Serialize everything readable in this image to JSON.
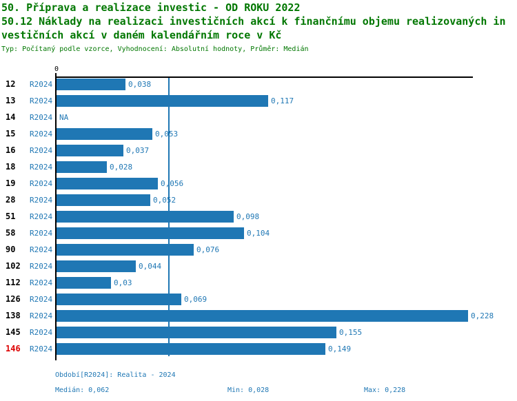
{
  "title": {
    "line1": "50. Příprava a realizace investic - OD ROKU 2022",
    "line2": "50.12 Náklady na realizaci investičních akcí k finančnímu objemu realizovaných in",
    "line3": "vestičních akcí v daném kalendářním roce v Kč",
    "meta": "Typ: Počítaný podle vzorce, Vyhodnocení: Absolutní hodnoty, Průměr: Medián"
  },
  "colors": {
    "title_green": "#007700",
    "bar_blue": "#1f77b4",
    "text_blue": "#1f77b4",
    "highlight_red": "#dd0000",
    "axis_black": "#000000"
  },
  "chart_data": {
    "type": "bar",
    "orientation": "horizontal",
    "title": "50.12 Náklady na realizaci investičních akcí k finančnímu objemu realizovaných investičních akcí v daném kalendářním roce v Kč",
    "series_label": "R2024",
    "categories": [
      "12",
      "13",
      "14",
      "15",
      "16",
      "18",
      "19",
      "28",
      "51",
      "58",
      "90",
      "102",
      "112",
      "126",
      "138",
      "145",
      "146"
    ],
    "values": [
      0.038,
      0.117,
      null,
      0.053,
      0.037,
      0.028,
      0.056,
      0.052,
      0.098,
      0.104,
      0.076,
      0.044,
      0.03,
      0.069,
      0.228,
      0.155,
      0.149
    ],
    "value_labels": [
      "0,038",
      "0,117",
      "NA",
      "0,053",
      "0,037",
      "0,028",
      "0,056",
      "0,052",
      "0,098",
      "0,104",
      "0,076",
      "0,044",
      "0,03",
      "0,069",
      "0,228",
      "0,155",
      "0,149"
    ],
    "highlighted_category": "146",
    "median_line": 0.062,
    "x_axis": {
      "tick_labels": [
        "0"
      ],
      "min": 0,
      "max": 0.2305
    },
    "grid": false,
    "legend_position": "none"
  },
  "footer": {
    "period": "Období[R2024]: Realita - 2024",
    "median": "Medián: 0,062",
    "min": "Min: 0,028",
    "max": "Max: 0,228"
  }
}
